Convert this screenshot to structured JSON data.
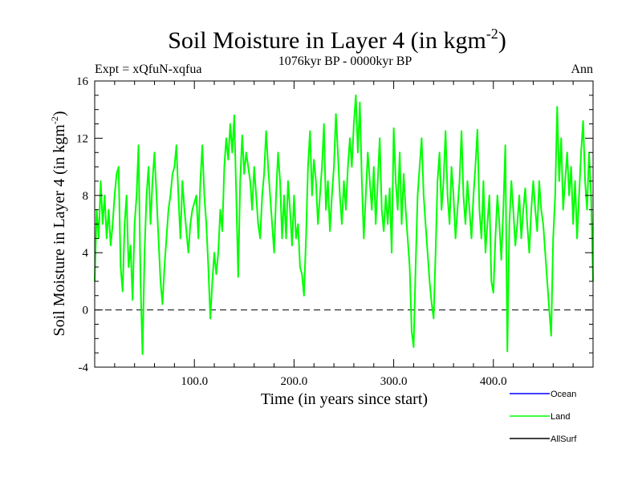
{
  "chart_data": {
    "type": "line",
    "title": "Soil Moisture in Layer 4 (in kgm",
    "title_sup": "-2",
    "title_end": ")",
    "subtitle": "1076kyr BP - 0000kyr BP",
    "left_label": "Expt = xQfuN-xqfua",
    "right_label": "Ann",
    "xlabel": "Time (in years since start)",
    "ylabel": "Soil Moisture in Layer 4 (in kgm",
    "ylabel_sup": "-2",
    "ylabel_end": ")",
    "xlim": [
      0,
      500
    ],
    "ylim": [
      -4,
      16
    ],
    "x_ticks": [
      100,
      200,
      300,
      400
    ],
    "x_tick_labels": [
      "100.0",
      "200.0",
      "300.0",
      "400.0"
    ],
    "y_ticks": [
      -4,
      0,
      4,
      8,
      12,
      16
    ],
    "y_tick_labels": [
      "-4",
      "0",
      "4",
      "8",
      "12",
      "16"
    ],
    "zero_line": 0,
    "legend": [
      {
        "name": "Ocean",
        "color": "#0000ff"
      },
      {
        "name": "Land",
        "color": "#00ff00"
      },
      {
        "name": "AllSurf",
        "color": "#000000"
      }
    ],
    "series": [
      {
        "name": "Land",
        "color": "#00ff00",
        "points": [
          [
            0,
            2
          ],
          [
            2,
            7
          ],
          [
            4,
            5
          ],
          [
            6,
            9
          ],
          [
            8,
            6
          ],
          [
            10,
            8
          ],
          [
            12,
            5
          ],
          [
            14,
            7
          ],
          [
            16,
            4.5
          ],
          [
            18,
            6
          ],
          [
            20,
            8
          ],
          [
            22,
            9.5
          ],
          [
            24,
            10
          ],
          [
            26,
            3
          ],
          [
            28,
            1.3
          ],
          [
            30,
            6
          ],
          [
            32,
            8
          ],
          [
            34,
            3
          ],
          [
            36,
            4.5
          ],
          [
            38,
            0.7
          ],
          [
            40,
            6
          ],
          [
            42,
            8
          ],
          [
            44,
            11.5
          ],
          [
            46,
            2
          ],
          [
            48,
            -3.1
          ],
          [
            50,
            4
          ],
          [
            52,
            8
          ],
          [
            54,
            10
          ],
          [
            56,
            6
          ],
          [
            58,
            9
          ],
          [
            60,
            11
          ],
          [
            62,
            8
          ],
          [
            64,
            5
          ],
          [
            66,
            2
          ],
          [
            68,
            0.4
          ],
          [
            70,
            3
          ],
          [
            72,
            5
          ],
          [
            74,
            7
          ],
          [
            76,
            8
          ],
          [
            78,
            9.5
          ],
          [
            80,
            10
          ],
          [
            82,
            11.5
          ],
          [
            84,
            8
          ],
          [
            86,
            5
          ],
          [
            88,
            9
          ],
          [
            90,
            7
          ],
          [
            92,
            5.5
          ],
          [
            94,
            4
          ],
          [
            96,
            6
          ],
          [
            98,
            7
          ],
          [
            100,
            7.5
          ],
          [
            102,
            8
          ],
          [
            104,
            5
          ],
          [
            106,
            9
          ],
          [
            108,
            11.5
          ],
          [
            110,
            8
          ],
          [
            112,
            6
          ],
          [
            114,
            3
          ],
          [
            116,
            -0.6
          ],
          [
            118,
            2
          ],
          [
            120,
            4
          ],
          [
            122,
            2.5
          ],
          [
            124,
            4
          ],
          [
            126,
            7
          ],
          [
            128,
            5.5
          ],
          [
            130,
            10
          ],
          [
            132,
            12
          ],
          [
            134,
            10.5
          ],
          [
            136,
            13
          ],
          [
            138,
            11
          ],
          [
            140,
            13.6
          ],
          [
            142,
            8
          ],
          [
            144,
            2.3
          ],
          [
            146,
            9
          ],
          [
            148,
            12.2
          ],
          [
            150,
            9.5
          ],
          [
            152,
            11
          ],
          [
            154,
            10
          ],
          [
            156,
            9
          ],
          [
            158,
            7
          ],
          [
            160,
            10
          ],
          [
            162,
            8
          ],
          [
            164,
            6
          ],
          [
            166,
            5
          ],
          [
            168,
            8
          ],
          [
            170,
            9.5
          ],
          [
            172,
            12.5
          ],
          [
            174,
            10
          ],
          [
            176,
            8
          ],
          [
            178,
            6
          ],
          [
            180,
            4
          ],
          [
            182,
            8
          ],
          [
            184,
            11
          ],
          [
            186,
            9
          ],
          [
            188,
            5
          ],
          [
            190,
            8
          ],
          [
            192,
            5
          ],
          [
            194,
            9
          ],
          [
            196,
            7
          ],
          [
            198,
            4.5
          ],
          [
            200,
            8
          ],
          [
            202,
            5
          ],
          [
            204,
            6
          ],
          [
            206,
            3
          ],
          [
            208,
            2.5
          ],
          [
            210,
            1
          ],
          [
            212,
            5
          ],
          [
            214,
            10
          ],
          [
            216,
            12.5
          ],
          [
            218,
            8
          ],
          [
            220,
            10.5
          ],
          [
            222,
            9
          ],
          [
            224,
            6
          ],
          [
            226,
            8
          ],
          [
            228,
            10
          ],
          [
            230,
            13
          ],
          [
            232,
            7
          ],
          [
            234,
            9
          ],
          [
            236,
            5.5
          ],
          [
            238,
            8
          ],
          [
            240,
            10
          ],
          [
            242,
            13.7
          ],
          [
            244,
            11
          ],
          [
            246,
            8
          ],
          [
            248,
            6
          ],
          [
            250,
            9
          ],
          [
            252,
            7
          ],
          [
            254,
            10
          ],
          [
            256,
            12
          ],
          [
            258,
            10
          ],
          [
            260,
            13
          ],
          [
            262,
            15
          ],
          [
            264,
            11
          ],
          [
            266,
            14.5
          ],
          [
            268,
            9
          ],
          [
            270,
            5
          ],
          [
            272,
            8
          ],
          [
            274,
            11
          ],
          [
            276,
            9
          ],
          [
            278,
            7
          ],
          [
            280,
            10
          ],
          [
            282,
            6
          ],
          [
            284,
            9
          ],
          [
            286,
            12
          ],
          [
            288,
            7
          ],
          [
            290,
            5.5
          ],
          [
            292,
            8
          ],
          [
            294,
            6
          ],
          [
            296,
            8.5
          ],
          [
            298,
            4
          ],
          [
            300,
            12.7
          ],
          [
            302,
            9
          ],
          [
            304,
            7
          ],
          [
            306,
            11
          ],
          [
            308,
            6
          ],
          [
            310,
            9.5
          ],
          [
            312,
            7
          ],
          [
            314,
            5
          ],
          [
            316,
            3
          ],
          [
            318,
            -1.5
          ],
          [
            320,
            -2.6
          ],
          [
            322,
            3
          ],
          [
            324,
            8
          ],
          [
            326,
            10
          ],
          [
            328,
            12
          ],
          [
            330,
            8
          ],
          [
            332,
            6
          ],
          [
            334,
            4
          ],
          [
            336,
            2
          ],
          [
            338,
            0.5
          ],
          [
            340,
            -0.6
          ],
          [
            342,
            4
          ],
          [
            344,
            9
          ],
          [
            346,
            11
          ],
          [
            348,
            7
          ],
          [
            350,
            9
          ],
          [
            352,
            12.5
          ],
          [
            354,
            8
          ],
          [
            356,
            6
          ],
          [
            358,
            10
          ],
          [
            360,
            8
          ],
          [
            362,
            5
          ],
          [
            364,
            7
          ],
          [
            366,
            9
          ],
          [
            368,
            12.5
          ],
          [
            370,
            8
          ],
          [
            372,
            6
          ],
          [
            374,
            9
          ],
          [
            376,
            7
          ],
          [
            378,
            5
          ],
          [
            380,
            8
          ],
          [
            382,
            10
          ],
          [
            384,
            12.6
          ],
          [
            386,
            7
          ],
          [
            388,
            5
          ],
          [
            390,
            9
          ],
          [
            392,
            4
          ],
          [
            394,
            6
          ],
          [
            396,
            8
          ],
          [
            398,
            2
          ],
          [
            400,
            1.2
          ],
          [
            402,
            5
          ],
          [
            404,
            8
          ],
          [
            406,
            6
          ],
          [
            408,
            3.5
          ],
          [
            410,
            7
          ],
          [
            412,
            11.5
          ],
          [
            414,
            -2.9
          ],
          [
            416,
            6
          ],
          [
            418,
            9
          ],
          [
            420,
            7
          ],
          [
            422,
            4.5
          ],
          [
            424,
            6
          ],
          [
            426,
            8
          ],
          [
            428,
            5
          ],
          [
            430,
            7
          ],
          [
            432,
            8.5
          ],
          [
            434,
            6
          ],
          [
            436,
            4
          ],
          [
            438,
            7
          ],
          [
            440,
            9
          ],
          [
            442,
            7
          ],
          [
            444,
            5.5
          ],
          [
            446,
            9
          ],
          [
            448,
            7
          ],
          [
            450,
            6
          ],
          [
            452,
            4
          ],
          [
            454,
            2
          ],
          [
            456,
            0
          ],
          [
            458,
            -1.8
          ],
          [
            460,
            5
          ],
          [
            462,
            8
          ],
          [
            464,
            14.2
          ],
          [
            466,
            9
          ],
          [
            468,
            12
          ],
          [
            470,
            7
          ],
          [
            472,
            9
          ],
          [
            474,
            11
          ],
          [
            476,
            8
          ],
          [
            478,
            10
          ],
          [
            480,
            6
          ],
          [
            482,
            9
          ],
          [
            484,
            5
          ],
          [
            486,
            8
          ],
          [
            488,
            11
          ],
          [
            490,
            13.2
          ],
          [
            492,
            9
          ],
          [
            494,
            7
          ],
          [
            496,
            11
          ],
          [
            498,
            8
          ],
          [
            500,
            2
          ]
        ]
      }
    ]
  }
}
